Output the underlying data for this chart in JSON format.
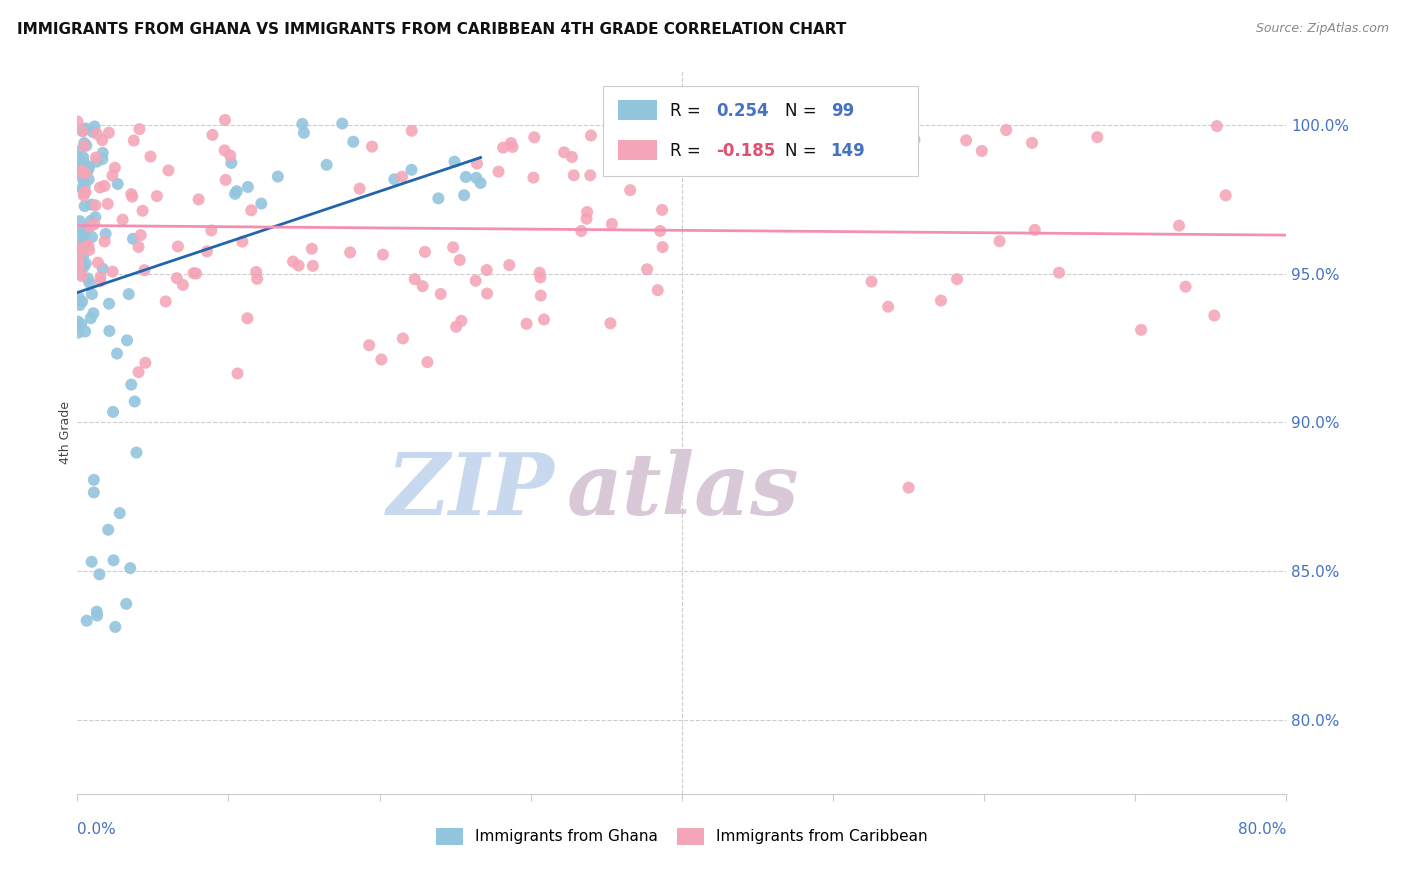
{
  "title": "IMMIGRANTS FROM GHANA VS IMMIGRANTS FROM CARIBBEAN 4TH GRADE CORRELATION CHART",
  "source": "Source: ZipAtlas.com",
  "ylabel": "4th Grade",
  "yaxis_labels": [
    "80.0%",
    "85.0%",
    "90.0%",
    "95.0%",
    "100.0%"
  ],
  "yaxis_values": [
    0.8,
    0.85,
    0.9,
    0.95,
    1.0
  ],
  "xaxis_range": [
    0.0,
    0.8
  ],
  "yaxis_range": [
    0.775,
    1.018
  ],
  "ghana_color": "#92c5de",
  "caribbean_color": "#f4a6b8",
  "ghana_line_color": "#2166ac",
  "caribbean_line_color": "#f48fb1",
  "source_color": "#888888",
  "axis_label_color": "#4472C4",
  "grid_color": "#cccccc",
  "watermark_zip_color": "#c8d8ee",
  "watermark_atlas_color": "#d8c8d8"
}
